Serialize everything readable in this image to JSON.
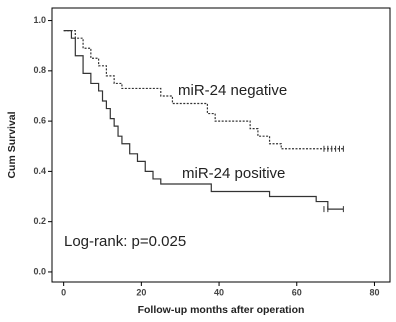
{
  "chart_data": {
    "type": "step",
    "title": null,
    "x_label": "Follow-up months after operation",
    "y_label": "Cum Survival",
    "xlim": [
      -3,
      84
    ],
    "ylim": [
      -0.04,
      1.05
    ],
    "xticks": [
      0,
      20,
      40,
      60,
      80
    ],
    "yticks": [
      {
        "value": 0,
        "label": "0.0"
      },
      0.2,
      0.4,
      0.6,
      0.8,
      {
        "value": 1,
        "label": "1.0"
      }
    ],
    "series": [
      {
        "name": "miR-24 negative",
        "color": "#333333",
        "dash": true,
        "x": [
          0,
          3,
          5,
          7,
          9,
          11,
          13,
          15,
          25,
          28,
          37,
          39,
          48,
          50,
          53,
          56,
          59,
          72
        ],
        "values": [
          0.96,
          0.93,
          0.89,
          0.85,
          0.82,
          0.78,
          0.75,
          0.73,
          0.7,
          0.67,
          0.63,
          0.6,
          0.57,
          0.54,
          0.51,
          0.49,
          0.49,
          0.49
        ],
        "censored": [
          67,
          68,
          69,
          70,
          71,
          72
        ]
      },
      {
        "name": "miR-24 positive",
        "color": "#333333",
        "dash": false,
        "x": [
          0,
          2,
          3,
          5,
          7,
          9,
          10,
          11,
          12,
          13,
          14,
          15,
          17,
          19,
          21,
          23,
          25,
          38,
          53,
          65,
          68,
          72
        ],
        "values": [
          0.96,
          0.93,
          0.86,
          0.79,
          0.75,
          0.72,
          0.68,
          0.65,
          0.61,
          0.58,
          0.54,
          0.51,
          0.47,
          0.44,
          0.4,
          0.37,
          0.35,
          0.32,
          0.3,
          0.28,
          0.25,
          0.25
        ],
        "censored": [
          67,
          68,
          72
        ]
      }
    ],
    "annotations": [
      "miR-24 negative",
      "miR-24 positive",
      "Log-rank: p=0.025"
    ]
  }
}
